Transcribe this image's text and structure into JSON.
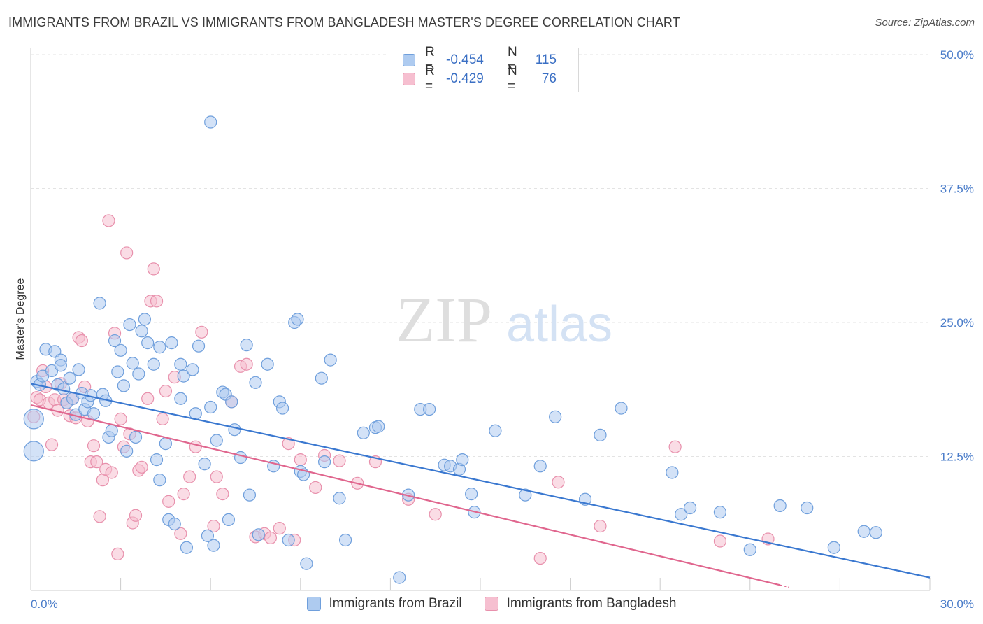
{
  "header": {
    "title": "IMMIGRANTS FROM BRAZIL VS IMMIGRANTS FROM BANGLADESH MASTER'S DEGREE CORRELATION CHART",
    "source": "Source: ZipAtlas.com"
  },
  "watermark": {
    "zip": "ZIP",
    "atlas": "atlas"
  },
  "legend": {
    "rows": [
      {
        "r_label": "R =",
        "r_value": "-0.454",
        "n_label": "N =",
        "n_value": "115"
      },
      {
        "r_label": "R =",
        "r_value": "-0.429",
        "n_label": "N =",
        "n_value": "76"
      }
    ]
  },
  "colors": {
    "brazil_fill": "#aecbf0",
    "brazil_stroke": "#6f9fdc",
    "brazil_line": "#3a78d0",
    "bangladesh_fill": "#f6bfd0",
    "bangladesh_stroke": "#e890ac",
    "bangladesh_line": "#e0668e",
    "grid": "#e3e3e3",
    "axis": "#cccccc",
    "tick_text": "#4a7cc9"
  },
  "chart_data": {
    "type": "scatter",
    "title": "IMMIGRANTS FROM BRAZIL VS IMMIGRANTS FROM BANGLADESH MASTER'S DEGREE CORRELATION CHART",
    "xlabel": "",
    "ylabel": "Master's Degree",
    "xlim": [
      0,
      30
    ],
    "ylim": [
      0,
      50
    ],
    "x_tick_labels": [
      "0.0%",
      "30.0%"
    ],
    "y_ticks": [
      12.5,
      25.0,
      37.5,
      50.0
    ],
    "y_tick_labels": [
      "12.5%",
      "25.0%",
      "37.5%",
      "50.0%"
    ],
    "grid": true,
    "legend_position": "bottom",
    "series": [
      {
        "name": "Immigrants from Brazil",
        "r": -0.454,
        "n": 115,
        "trend": {
          "x": [
            0,
            30
          ],
          "y": [
            19.3,
            1.2
          ]
        },
        "points": [
          [
            0.1,
            13.0
          ],
          [
            0.1,
            16.0
          ],
          [
            0.2,
            19.5
          ],
          [
            0.3,
            19.2
          ],
          [
            0.4,
            20.0
          ],
          [
            0.5,
            22.5
          ],
          [
            0.7,
            20.5
          ],
          [
            0.8,
            22.3
          ],
          [
            0.9,
            19.2
          ],
          [
            1.0,
            21.5
          ],
          [
            1.0,
            21.0
          ],
          [
            1.1,
            18.8
          ],
          [
            1.2,
            17.5
          ],
          [
            1.3,
            19.8
          ],
          [
            1.4,
            17.9
          ],
          [
            1.5,
            16.4
          ],
          [
            1.6,
            20.6
          ],
          [
            1.7,
            18.4
          ],
          [
            1.8,
            16.9
          ],
          [
            1.9,
            17.6
          ],
          [
            2.0,
            18.2
          ],
          [
            2.1,
            16.5
          ],
          [
            2.3,
            26.8
          ],
          [
            2.4,
            18.3
          ],
          [
            2.5,
            17.7
          ],
          [
            2.6,
            14.3
          ],
          [
            2.7,
            14.9
          ],
          [
            2.8,
            23.3
          ],
          [
            2.9,
            20.4
          ],
          [
            3.0,
            22.4
          ],
          [
            3.1,
            19.1
          ],
          [
            3.2,
            13.0
          ],
          [
            3.3,
            24.8
          ],
          [
            3.4,
            21.2
          ],
          [
            3.5,
            14.3
          ],
          [
            3.6,
            20.2
          ],
          [
            3.7,
            24.2
          ],
          [
            3.8,
            25.3
          ],
          [
            3.9,
            23.1
          ],
          [
            4.1,
            21.1
          ],
          [
            4.2,
            12.2
          ],
          [
            4.3,
            22.7
          ],
          [
            4.3,
            10.3
          ],
          [
            4.5,
            13.7
          ],
          [
            4.6,
            6.6
          ],
          [
            4.7,
            23.1
          ],
          [
            4.8,
            6.2
          ],
          [
            5.0,
            21.1
          ],
          [
            5.0,
            17.9
          ],
          [
            5.1,
            20.0
          ],
          [
            5.2,
            4.0
          ],
          [
            5.4,
            20.6
          ],
          [
            5.5,
            16.5
          ],
          [
            5.6,
            22.8
          ],
          [
            5.8,
            11.8
          ],
          [
            5.9,
            5.1
          ],
          [
            6.0,
            17.1
          ],
          [
            6.1,
            4.2
          ],
          [
            6.2,
            14.0
          ],
          [
            6.4,
            18.5
          ],
          [
            6.5,
            18.3
          ],
          [
            6.6,
            6.6
          ],
          [
            6.7,
            17.6
          ],
          [
            6.8,
            15.0
          ],
          [
            6.0,
            43.7
          ],
          [
            7.0,
            12.4
          ],
          [
            7.2,
            22.9
          ],
          [
            7.3,
            8.9
          ],
          [
            7.5,
            19.4
          ],
          [
            7.6,
            5.2
          ],
          [
            7.9,
            21.1
          ],
          [
            8.1,
            11.6
          ],
          [
            8.3,
            17.6
          ],
          [
            8.4,
            17.0
          ],
          [
            8.6,
            4.7
          ],
          [
            8.8,
            25.0
          ],
          [
            8.9,
            25.3
          ],
          [
            9.0,
            11.1
          ],
          [
            9.1,
            10.8
          ],
          [
            9.2,
            2.5
          ],
          [
            9.7,
            19.8
          ],
          [
            9.8,
            12.0
          ],
          [
            10.0,
            21.5
          ],
          [
            10.3,
            8.6
          ],
          [
            10.5,
            4.7
          ],
          [
            11.1,
            14.7
          ],
          [
            11.5,
            15.2
          ],
          [
            11.6,
            15.3
          ],
          [
            12.3,
            1.2
          ],
          [
            12.6,
            8.9
          ],
          [
            13.0,
            16.9
          ],
          [
            13.3,
            16.9
          ],
          [
            13.8,
            11.7
          ],
          [
            14.0,
            11.6
          ],
          [
            14.3,
            11.3
          ],
          [
            14.4,
            12.2
          ],
          [
            14.7,
            9.0
          ],
          [
            14.8,
            7.3
          ],
          [
            15.5,
            14.9
          ],
          [
            16.5,
            8.9
          ],
          [
            17.0,
            11.6
          ],
          [
            17.5,
            16.2
          ],
          [
            18.5,
            8.5
          ],
          [
            19.0,
            14.5
          ],
          [
            19.7,
            17.0
          ],
          [
            21.4,
            11.0
          ],
          [
            21.7,
            7.1
          ],
          [
            22.0,
            7.7
          ],
          [
            23.0,
            7.3
          ],
          [
            24.0,
            3.8
          ],
          [
            25.0,
            7.9
          ],
          [
            25.9,
            7.7
          ],
          [
            26.8,
            4.0
          ],
          [
            27.8,
            5.5
          ],
          [
            28.2,
            5.4
          ]
        ]
      },
      {
        "name": "Immigrants from Bangladesh",
        "r": -0.429,
        "n": 76,
        "trend": {
          "x": [
            0,
            25
          ],
          "y": [
            17.3,
            0.5
          ]
        },
        "points": [
          [
            0.1,
            16.2
          ],
          [
            0.2,
            18.0
          ],
          [
            0.3,
            17.8
          ],
          [
            0.4,
            20.5
          ],
          [
            0.5,
            19.0
          ],
          [
            0.6,
            17.5
          ],
          [
            0.7,
            13.6
          ],
          [
            0.8,
            17.8
          ],
          [
            0.9,
            16.8
          ],
          [
            1.0,
            19.3
          ],
          [
            1.1,
            17.8
          ],
          [
            1.2,
            17.5
          ],
          [
            1.3,
            16.3
          ],
          [
            1.4,
            17.9
          ],
          [
            1.5,
            16.1
          ],
          [
            1.6,
            23.6
          ],
          [
            1.7,
            23.3
          ],
          [
            1.8,
            19.0
          ],
          [
            1.9,
            15.8
          ],
          [
            2.0,
            12.0
          ],
          [
            2.1,
            13.5
          ],
          [
            2.2,
            12.0
          ],
          [
            2.3,
            6.9
          ],
          [
            2.4,
            10.3
          ],
          [
            2.5,
            11.3
          ],
          [
            2.6,
            34.5
          ],
          [
            2.7,
            11.0
          ],
          [
            2.8,
            24.0
          ],
          [
            2.9,
            3.4
          ],
          [
            3.0,
            16.0
          ],
          [
            3.1,
            13.4
          ],
          [
            3.2,
            31.5
          ],
          [
            3.3,
            14.6
          ],
          [
            3.4,
            6.3
          ],
          [
            3.5,
            7.0
          ],
          [
            3.6,
            11.2
          ],
          [
            3.7,
            11.5
          ],
          [
            3.9,
            17.9
          ],
          [
            4.0,
            27.0
          ],
          [
            4.1,
            30.0
          ],
          [
            4.2,
            27.0
          ],
          [
            4.4,
            16.0
          ],
          [
            4.5,
            18.6
          ],
          [
            4.6,
            8.3
          ],
          [
            4.8,
            19.9
          ],
          [
            5.0,
            5.3
          ],
          [
            5.1,
            9.0
          ],
          [
            5.3,
            10.6
          ],
          [
            5.5,
            13.4
          ],
          [
            5.7,
            24.1
          ],
          [
            6.1,
            6.0
          ],
          [
            6.2,
            10.6
          ],
          [
            6.4,
            9.0
          ],
          [
            6.7,
            17.6
          ],
          [
            7.0,
            20.9
          ],
          [
            7.2,
            21.1
          ],
          [
            7.5,
            5.0
          ],
          [
            7.8,
            5.3
          ],
          [
            8.0,
            4.9
          ],
          [
            8.3,
            5.8
          ],
          [
            8.6,
            13.7
          ],
          [
            8.8,
            4.7
          ],
          [
            9.0,
            12.2
          ],
          [
            9.5,
            9.6
          ],
          [
            9.8,
            12.6
          ],
          [
            10.3,
            12.1
          ],
          [
            10.9,
            10.0
          ],
          [
            11.5,
            12.0
          ],
          [
            12.6,
            8.5
          ],
          [
            13.5,
            7.1
          ],
          [
            17.0,
            3.0
          ],
          [
            17.6,
            10.1
          ],
          [
            19.0,
            6.0
          ],
          [
            21.5,
            13.4
          ],
          [
            23.0,
            4.6
          ],
          [
            24.6,
            4.8
          ]
        ]
      }
    ]
  }
}
